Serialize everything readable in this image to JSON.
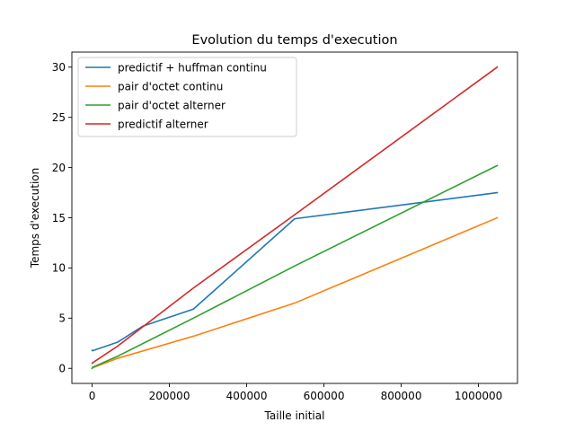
{
  "chart_data": {
    "type": "line",
    "title": "Evolution du temps d'execution",
    "xlabel": "Taille initial",
    "ylabel": "Temps d'execution",
    "xlim": [
      -52428.8,
      1101004.8
    ],
    "ylim": [
      -1.5,
      31.5
    ],
    "xticks": [
      0,
      200000,
      400000,
      600000,
      800000,
      1000000
    ],
    "xtick_labels": [
      "0",
      "200000",
      "400000",
      "600000",
      "800000",
      "1000000"
    ],
    "yticks": [
      0,
      5,
      10,
      15,
      20,
      25,
      30
    ],
    "ytick_labels": [
      "0",
      "5",
      "10",
      "15",
      "20",
      "25",
      "30"
    ],
    "grid": false,
    "legend_position": "top-left",
    "series": [
      {
        "name": "predictif + huffman continu",
        "color": "#1f77b4",
        "x": [
          0,
          1024,
          65536,
          131072,
          262144,
          524288,
          1048576
        ],
        "y": [
          1.8,
          1.75,
          2.6,
          4.2,
          5.9,
          14.9,
          17.5
        ]
      },
      {
        "name": "pair d'octet continu",
        "color": "#ff7f0e",
        "x": [
          0,
          1024,
          65536,
          262144,
          524288,
          1048576
        ],
        "y": [
          0.0,
          0.05,
          1.0,
          3.2,
          6.5,
          15.0
        ]
      },
      {
        "name": "pair d'octet alterner",
        "color": "#2ca02c",
        "x": [
          0,
          1024,
          65536,
          262144,
          524288,
          1048576
        ],
        "y": [
          0.0,
          0.1,
          1.2,
          5.0,
          10.2,
          20.2
        ]
      },
      {
        "name": "predictif alterner",
        "color": "#d62728",
        "x": [
          0,
          1024,
          65536,
          262144,
          524288,
          1048576
        ],
        "y": [
          0.5,
          0.55,
          2.2,
          8.0,
          15.3,
          30.0
        ]
      }
    ]
  }
}
